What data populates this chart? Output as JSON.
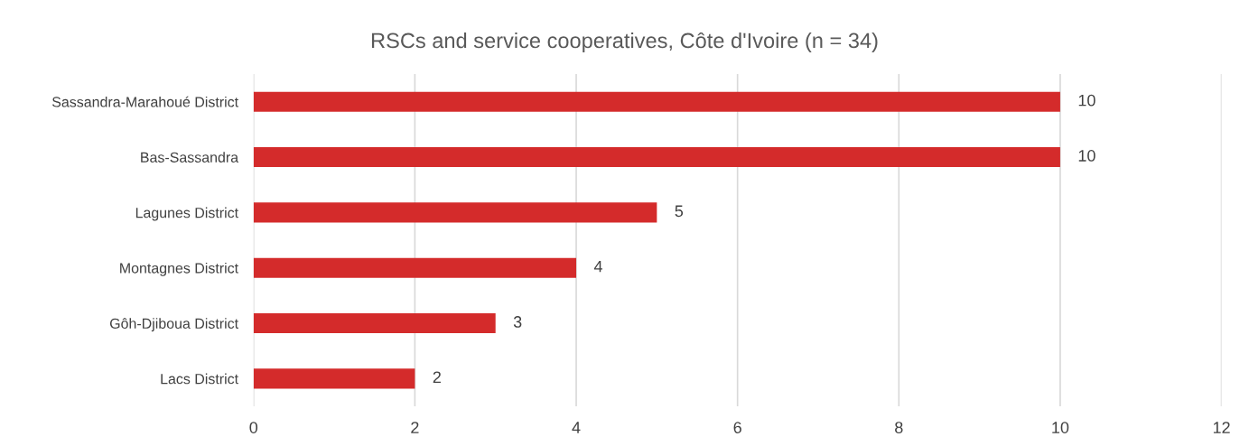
{
  "chart_data": {
    "type": "bar",
    "orientation": "horizontal",
    "title": "RSCs and service cooperatives, Côte d'Ivoire (n = 34)",
    "categories": [
      "Sassandra-Marahoué District",
      "Bas-Sassandra",
      "Lagunes District",
      "Montagnes District",
      "Gôh-Djiboua District",
      "Lacs District"
    ],
    "values": [
      10,
      10,
      5,
      4,
      3,
      2
    ],
    "color": "#d42b2b",
    "xlim": [
      0,
      12
    ],
    "xticks": [
      0,
      2,
      4,
      6,
      8,
      10,
      12
    ],
    "grid": "x",
    "data_labels": true
  }
}
